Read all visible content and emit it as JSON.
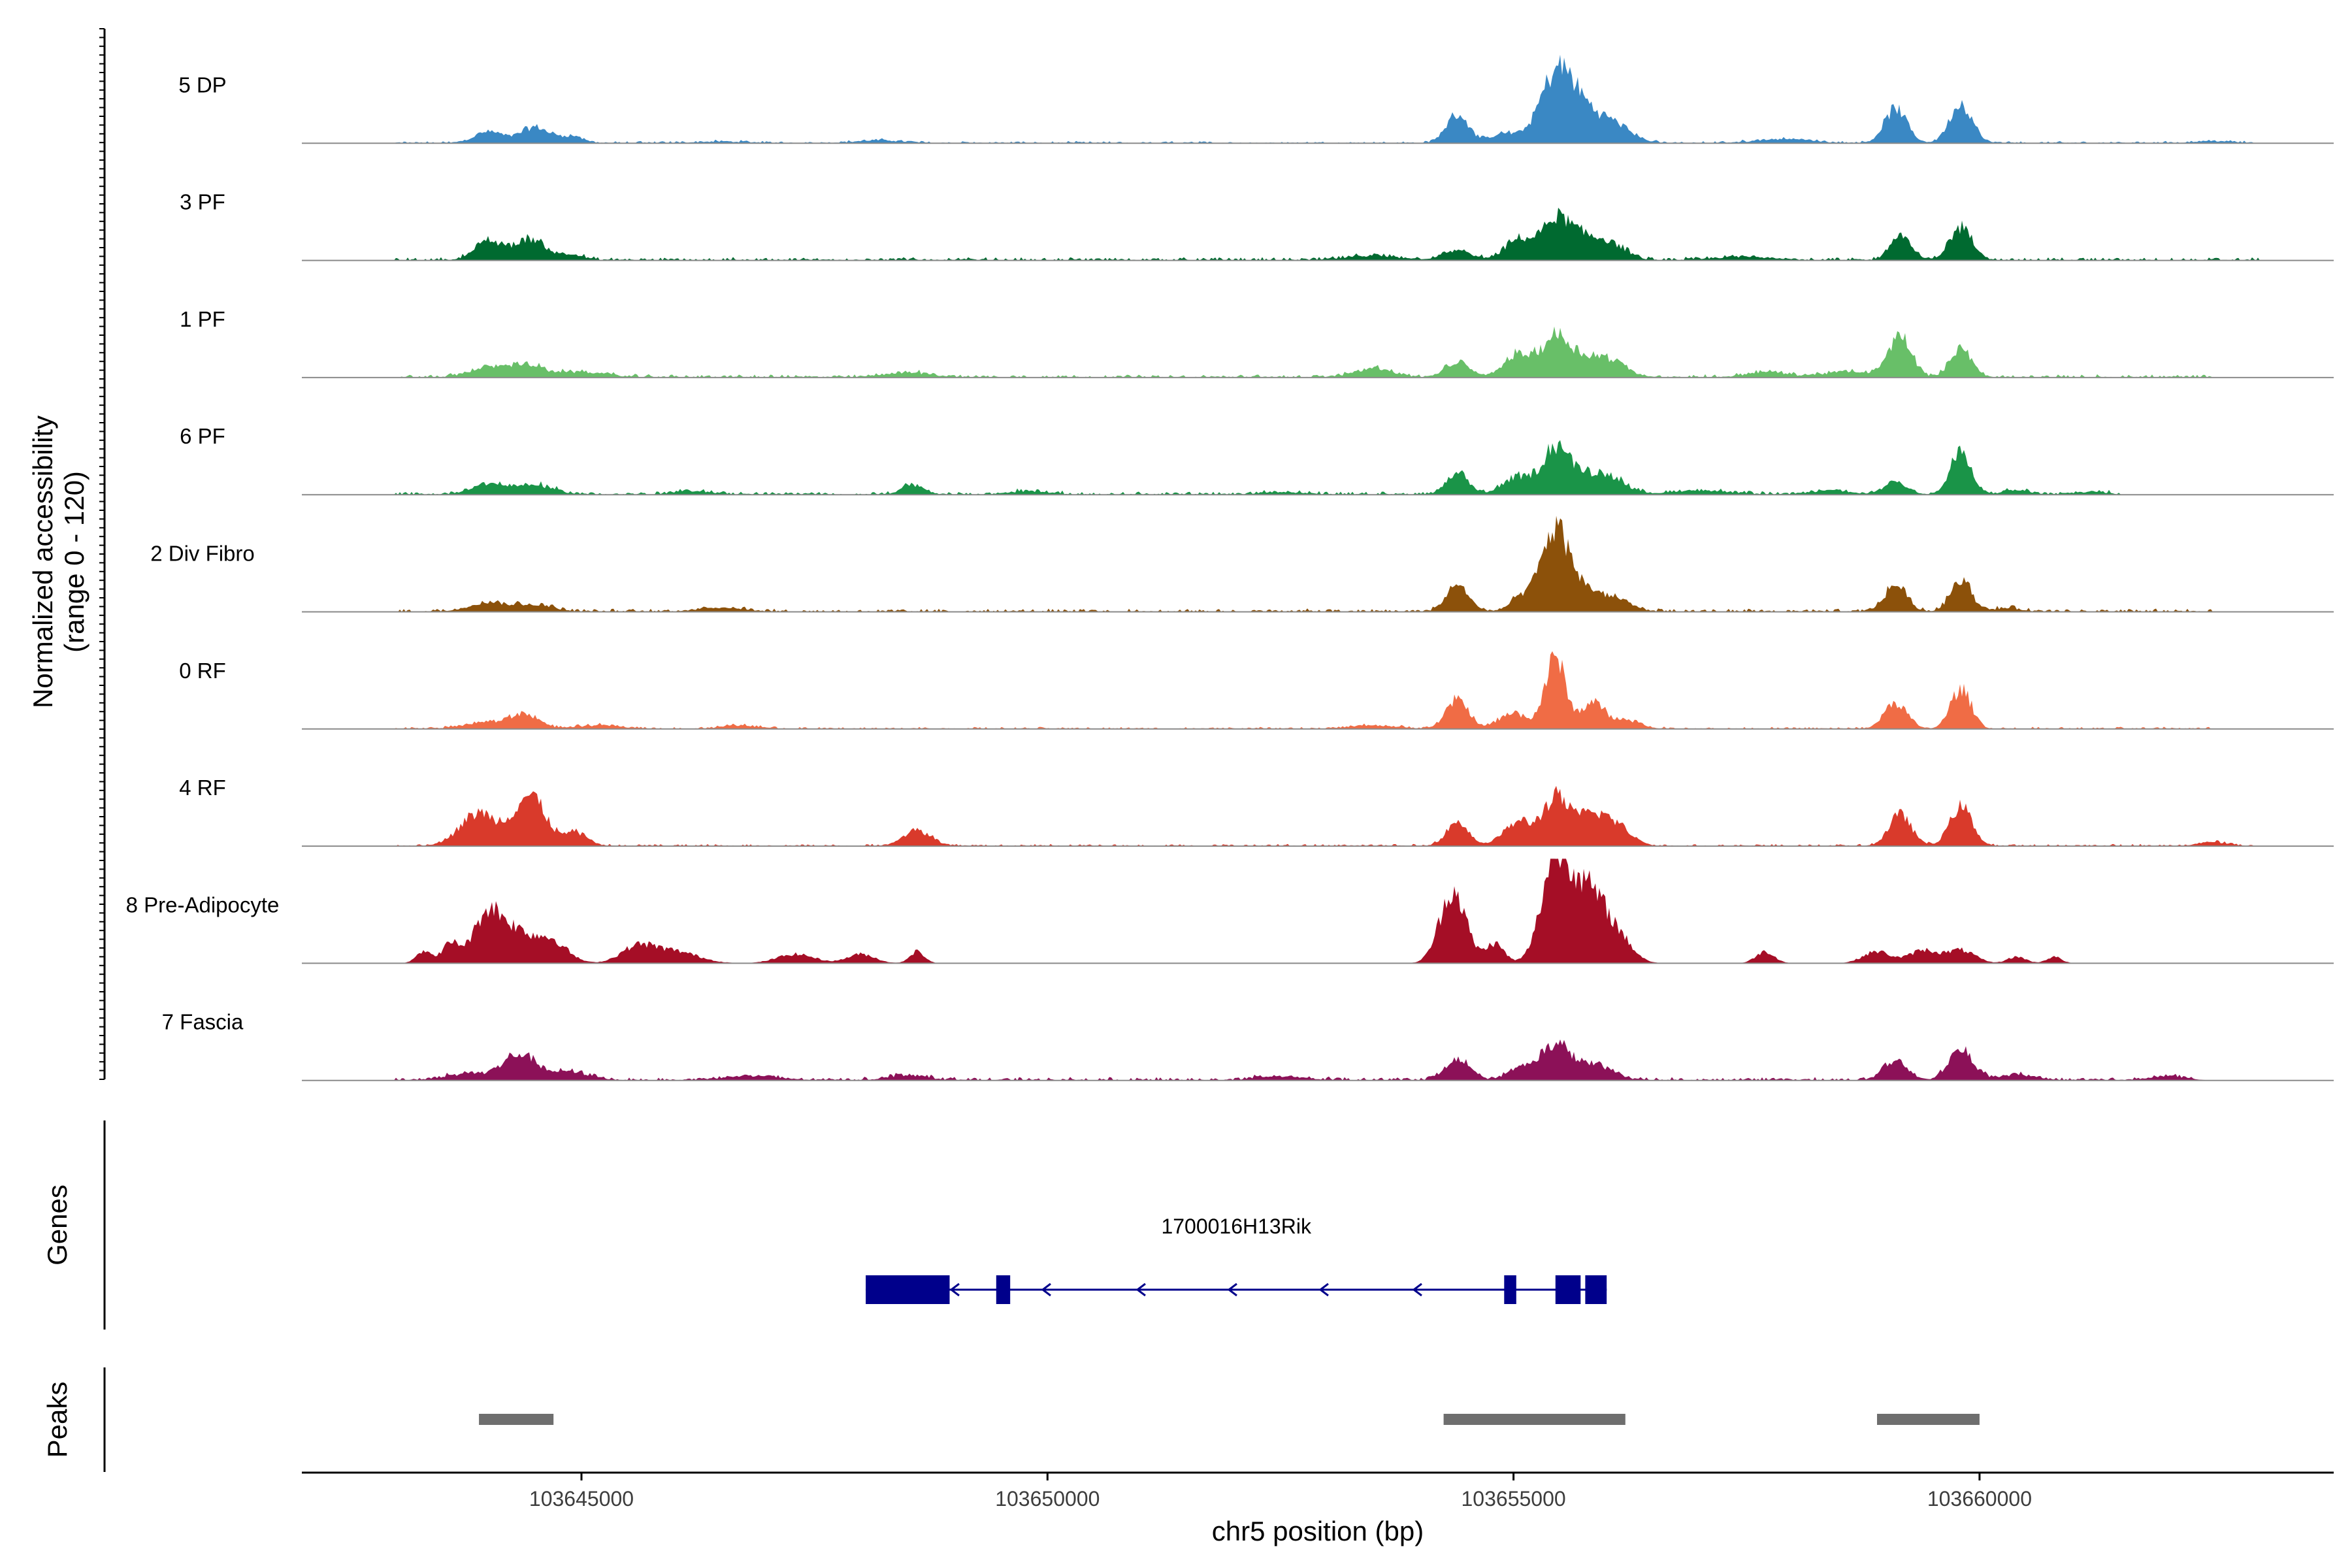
{
  "chart_data": {
    "type": "area",
    "title": "",
    "ylabel_line1": "Normalized accessibility",
    "ylabel_line2": "(range 0 - 120)",
    "ylim": [
      0,
      120
    ],
    "xlabel": "chr5 position (bp)",
    "xlim": [
      103642000,
      103663800
    ],
    "xticks": [
      103645000,
      103650000,
      103655000,
      103660000
    ],
    "xtick_labels": [
      "103645000",
      "103650000",
      "103655000",
      "103660000"
    ],
    "tracks": [
      {
        "name": "5 DP",
        "color": "#3a88c4",
        "peaks": [
          [
            103644000,
            150,
            17
          ],
          [
            103644500,
            160,
            24
          ],
          [
            103644900,
            120,
            10
          ],
          [
            103646500,
            300,
            2
          ],
          [
            103648200,
            250,
            4
          ],
          [
            103654400,
            120,
            44
          ],
          [
            103654900,
            140,
            14
          ],
          [
            103655450,
            180,
            88
          ],
          [
            103655700,
            220,
            48
          ],
          [
            103656100,
            180,
            24
          ],
          [
            103657900,
            300,
            6
          ],
          [
            103659100,
            120,
            52
          ],
          [
            103659800,
            120,
            60
          ],
          [
            103662500,
            200,
            3
          ]
        ],
        "noise": [
          103643000,
          103663000
        ],
        "noise_amp": 2
      },
      {
        "name": "3 PF",
        "color": "#006a30",
        "peaks": [
          [
            103644000,
            150,
            28
          ],
          [
            103644450,
            170,
            32
          ],
          [
            103644900,
            120,
            8
          ],
          [
            103653500,
            300,
            6
          ],
          [
            103654400,
            150,
            14
          ],
          [
            103655050,
            140,
            30
          ],
          [
            103655450,
            160,
            58
          ],
          [
            103655800,
            200,
            32
          ],
          [
            103656100,
            150,
            14
          ],
          [
            103659150,
            110,
            38
          ],
          [
            103659800,
            120,
            50
          ],
          [
            103657500,
            300,
            5
          ]
        ],
        "noise": [
          103643000,
          103663000
        ],
        "noise_amp": 3
      },
      {
        "name": "1 PF",
        "color": "#68bf68",
        "peaks": [
          [
            103644000,
            200,
            14
          ],
          [
            103644400,
            180,
            18
          ],
          [
            103645000,
            250,
            8
          ],
          [
            103648500,
            250,
            7
          ],
          [
            103653500,
            200,
            14
          ],
          [
            103654400,
            130,
            22
          ],
          [
            103655050,
            150,
            34
          ],
          [
            103655450,
            150,
            58
          ],
          [
            103655800,
            200,
            28
          ],
          [
            103656100,
            150,
            16
          ],
          [
            103657700,
            200,
            8
          ],
          [
            103659150,
            120,
            64
          ],
          [
            103659800,
            110,
            45
          ],
          [
            103658600,
            300,
            8
          ]
        ],
        "noise": [
          103643000,
          103662500
        ],
        "noise_amp": 3
      },
      {
        "name": "6 PF",
        "color": "#1a9448",
        "peaks": [
          [
            103644000,
            180,
            16
          ],
          [
            103644500,
            200,
            14
          ],
          [
            103646200,
            200,
            5
          ],
          [
            103648550,
            120,
            14
          ],
          [
            103649800,
            200,
            5
          ],
          [
            103652500,
            200,
            4
          ],
          [
            103654400,
            120,
            30
          ],
          [
            103655050,
            160,
            26
          ],
          [
            103655450,
            140,
            68
          ],
          [
            103655800,
            200,
            30
          ],
          [
            103656100,
            150,
            16
          ],
          [
            103657000,
            300,
            6
          ],
          [
            103658400,
            200,
            6
          ],
          [
            103659100,
            120,
            20
          ],
          [
            103659800,
            110,
            64
          ],
          [
            103660400,
            150,
            6
          ],
          [
            103661200,
            150,
            4
          ]
        ],
        "noise": [
          103643000,
          103661500
        ],
        "noise_amp": 3
      },
      {
        "name": "2 Div Fibro",
        "color": "#8c510a",
        "peaks": [
          [
            103644000,
            200,
            14
          ],
          [
            103644500,
            200,
            10
          ],
          [
            103646500,
            250,
            6
          ],
          [
            103654400,
            120,
            40
          ],
          [
            103655100,
            130,
            20
          ],
          [
            103655450,
            150,
            120
          ],
          [
            103655800,
            200,
            30
          ],
          [
            103656150,
            150,
            12
          ],
          [
            103659100,
            120,
            40
          ],
          [
            103659800,
            110,
            50
          ],
          [
            103660300,
            150,
            5
          ]
        ],
        "noise": [
          103643000,
          103662500
        ],
        "noise_amp": 3
      },
      {
        "name": "0 RF",
        "color": "#f06c45",
        "peaks": [
          [
            103644000,
            250,
            10
          ],
          [
            103644400,
            150,
            20
          ],
          [
            103645200,
            250,
            5
          ],
          [
            103646700,
            200,
            5
          ],
          [
            103653500,
            250,
            5
          ],
          [
            103654400,
            120,
            44
          ],
          [
            103655000,
            150,
            24
          ],
          [
            103655450,
            110,
            108
          ],
          [
            103655850,
            120,
            40
          ],
          [
            103656200,
            150,
            14
          ],
          [
            103659100,
            120,
            40
          ],
          [
            103659800,
            110,
            60
          ]
        ],
        "noise": [
          103643000,
          103662500
        ],
        "noise_amp": 2
      },
      {
        "name": "4 RF",
        "color": "#d93a2b",
        "peaks": [
          [
            103643900,
            200,
            50
          ],
          [
            103644450,
            170,
            76
          ],
          [
            103644950,
            120,
            20
          ],
          [
            103648600,
            150,
            24
          ],
          [
            103654400,
            120,
            36
          ],
          [
            103655050,
            150,
            36
          ],
          [
            103655450,
            140,
            70
          ],
          [
            103655850,
            180,
            48
          ],
          [
            103656150,
            150,
            20
          ],
          [
            103659150,
            120,
            48
          ],
          [
            103659800,
            120,
            60
          ],
          [
            103662500,
            150,
            6
          ]
        ],
        "noise": [
          103643000,
          103663000
        ],
        "noise_amp": 2
      },
      {
        "name": "8 Pre-Adipocyte",
        "color": "#a50e26",
        "peaks": [
          [
            103643300,
            80,
            18
          ],
          [
            103643600,
            100,
            30
          ],
          [
            103644000,
            150,
            80
          ],
          [
            103644300,
            150,
            40
          ],
          [
            103644650,
            180,
            38
          ],
          [
            103645600,
            180,
            24
          ],
          [
            103646000,
            250,
            18
          ],
          [
            103647300,
            200,
            14
          ],
          [
            103648000,
            150,
            14
          ],
          [
            103648600,
            80,
            18
          ],
          [
            103654350,
            140,
            112
          ],
          [
            103654800,
            100,
            30
          ],
          [
            103655450,
            150,
            152
          ],
          [
            103655800,
            200,
            110
          ],
          [
            103656150,
            150,
            26
          ],
          [
            103657700,
            100,
            18
          ],
          [
            103658900,
            150,
            18
          ],
          [
            103659400,
            150,
            20
          ],
          [
            103659800,
            150,
            20
          ],
          [
            103660400,
            100,
            10
          ],
          [
            103660800,
            80,
            10
          ]
        ],
        "noise": [
          103643300,
          103661000
        ],
        "noise_amp": 0
      },
      {
        "name": "7 Fascia",
        "color": "#8c1158",
        "peaks": [
          [
            103643800,
            250,
            10
          ],
          [
            103644350,
            180,
            38
          ],
          [
            103644900,
            200,
            12
          ],
          [
            103646800,
            300,
            6
          ],
          [
            103648500,
            200,
            8
          ],
          [
            103652500,
            250,
            6
          ],
          [
            103654400,
            130,
            32
          ],
          [
            103655100,
            160,
            18
          ],
          [
            103655450,
            150,
            50
          ],
          [
            103655850,
            200,
            24
          ],
          [
            103659100,
            130,
            28
          ],
          [
            103659800,
            130,
            46
          ],
          [
            103660400,
            200,
            8
          ],
          [
            103662000,
            200,
            6
          ]
        ],
        "noise": [
          103643000,
          103662300
        ],
        "noise_amp": 3
      }
    ],
    "genes": {
      "title": "Genes",
      "items": [
        {
          "name": "1700016H13Rik",
          "strand": "-",
          "start": 103648050,
          "end": 103656000,
          "exons": [
            [
              103648050,
              103648950
            ],
            [
              103649450,
              103649600
            ],
            [
              103654900,
              103655030
            ],
            [
              103655450,
              103655720
            ],
            [
              103655770,
              103656000
            ]
          ],
          "color": "#00008b"
        }
      ]
    },
    "peaks_track": {
      "title": "Peaks",
      "color": "#6e6e6e",
      "regions": [
        [
          103643900,
          103644700
        ],
        [
          103654250,
          103656200
        ],
        [
          103658900,
          103660000
        ]
      ]
    }
  }
}
